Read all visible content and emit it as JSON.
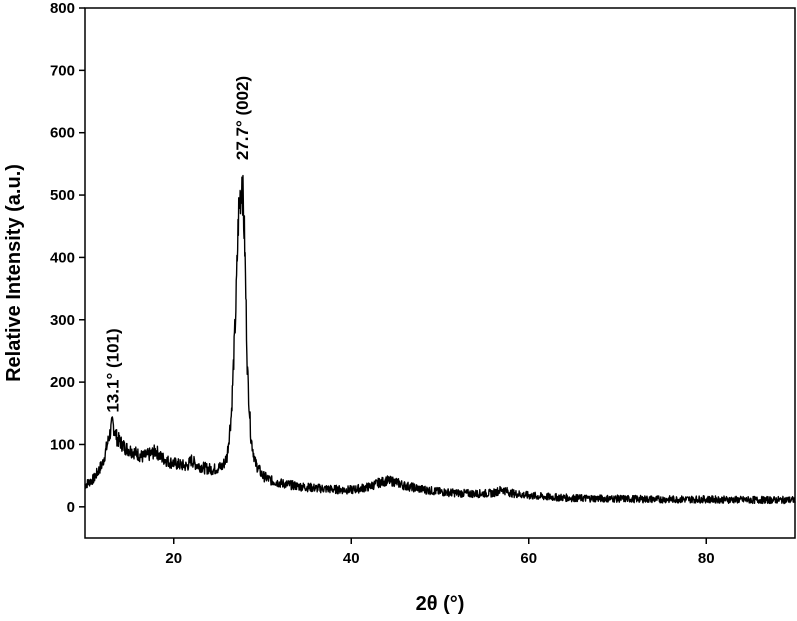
{
  "chart_data": {
    "type": "line",
    "title": "",
    "xlabel": "2θ (°)",
    "ylabel": "Relative Intensity (a.u.)",
    "xlim": [
      10,
      90
    ],
    "ylim": [
      -50,
      800
    ],
    "x_ticks": [
      20,
      40,
      60,
      80
    ],
    "y_ticks": [
      0,
      100,
      200,
      300,
      400,
      500,
      600,
      700,
      800
    ],
    "grid": false,
    "legend": "none",
    "series_color": "#000000",
    "series": [
      {
        "x": [
          10,
          11,
          12,
          12.6,
          13.1,
          13.6,
          14.5,
          15.5,
          16.5,
          17.5,
          18,
          18.5,
          19.5,
          20.5,
          21.5,
          22,
          22.5,
          23.5,
          24.5,
          25.5,
          26,
          26.5,
          27,
          27.3,
          27.7,
          28,
          28.3,
          28.7,
          29.2,
          30,
          31,
          32,
          34,
          36,
          38,
          40,
          42,
          43,
          44,
          45,
          46,
          48,
          50,
          52,
          54,
          56,
          57,
          58,
          60,
          62,
          65,
          70,
          75,
          80,
          85,
          90
        ],
        "y": [
          35,
          45,
          70,
          105,
          135,
          110,
          95,
          88,
          80,
          85,
          90,
          80,
          72,
          68,
          65,
          75,
          68,
          62,
          60,
          65,
          80,
          150,
          320,
          470,
          530,
          420,
          220,
          110,
          70,
          50,
          42,
          38,
          33,
          30,
          28,
          27,
          32,
          38,
          42,
          40,
          34,
          28,
          24,
          22,
          21,
          22,
          28,
          22,
          18,
          16,
          14,
          13,
          12,
          12,
          11,
          11
        ]
      }
    ],
    "annotations": [
      {
        "text": "13.1° (101)",
        "x": 13.1,
        "y": 135
      },
      {
        "text": "27.7° (002)",
        "x": 27.7,
        "y": 540
      }
    ]
  }
}
